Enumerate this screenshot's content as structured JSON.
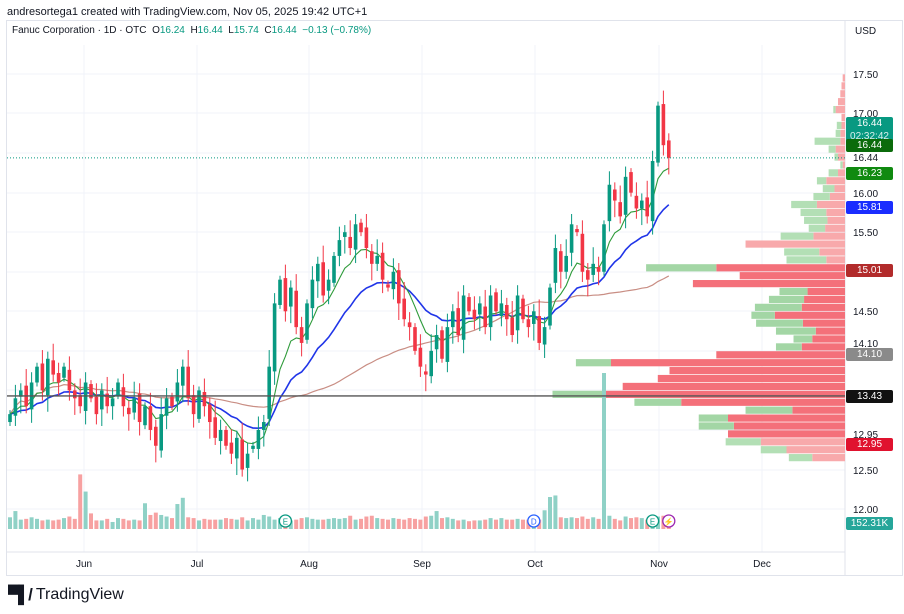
{
  "credit": "andresortega1 created with TradingView.com, Nov 05, 2025 19:42 UTC+1",
  "legend": {
    "symbol": "Fanuc Corporation · 1D · OTC",
    "o_label": "O",
    "open": "16.24",
    "h_label": "H",
    "high": "16.44",
    "l_label": "L",
    "low": "15.74",
    "c_label": "C",
    "close": "16.44",
    "change": "−0.13 (−0.78%)"
  },
  "currency": "USD",
  "brand": "TradingView",
  "colors": {
    "up": "#089981",
    "down": "#f23645",
    "vol_up": "#8fd1c6",
    "vol_down": "#f7a1a1",
    "ma_fast": "#2e9b3a",
    "ma_mid": "#2035e8",
    "ma_slow": "#c98e84"
  },
  "chart_data": {
    "type": "candlestick",
    "title": "Fanuc Corporation · 1D · OTC",
    "y_ticks": [
      "17.50",
      "17.00",
      "16.44",
      "16.00",
      "15.50",
      "14.50",
      "14.10",
      "12.95",
      "12.50",
      "12.00"
    ],
    "x_ticks": [
      "Jun",
      "Jul",
      "Aug",
      "Sep",
      "Oct",
      "Nov",
      "Dec"
    ],
    "ylim": [
      12.0,
      17.5
    ],
    "closes": [
      13.2,
      13.4,
      13.5,
      13.3,
      13.6,
      13.8,
      13.5,
      13.9,
      13.7,
      13.6,
      13.8,
      13.5,
      13.4,
      13.3,
      13.6,
      13.4,
      13.2,
      13.5,
      13.3,
      13.4,
      13.6,
      13.3,
      13.2,
      13.4,
      13.1,
      13.3,
      13.0,
      12.8,
      13.2,
      13.4,
      13.3,
      13.6,
      13.8,
      13.4,
      13.2,
      13.5,
      13.3,
      13.1,
      12.9,
      13.0,
      12.8,
      12.7,
      12.9,
      12.5,
      12.7,
      12.8,
      13.0,
      13.1,
      13.8,
      14.6,
      14.9,
      14.5,
      14.8,
      14.3,
      14.1,
      14.6,
      14.9,
      15.1,
      14.7,
      14.9,
      15.2,
      15.4,
      15.5,
      15.3,
      15.6,
      15.5,
      15.3,
      15.1,
      15.2,
      14.9,
      14.8,
      15.0,
      14.6,
      14.4,
      14.3,
      14.0,
      13.8,
      13.7,
      14.0,
      14.2,
      13.9,
      14.3,
      14.5,
      14.2,
      14.7,
      14.5,
      14.4,
      14.6,
      14.3,
      14.7,
      14.5,
      14.6,
      14.4,
      14.2,
      14.7,
      14.4,
      14.3,
      14.5,
      14.1,
      14.3,
      14.8,
      15.3,
      15.0,
      15.2,
      15.6,
      15.5,
      15.0,
      14.9,
      15.1,
      15.0,
      15.6,
      16.1,
      15.9,
      15.7,
      16.2,
      16.0,
      15.8,
      15.9,
      15.7,
      16.4,
      17.1,
      16.6,
      16.44
    ],
    "volumes_k": [
      150,
      230,
      120,
      130,
      150,
      130,
      110,
      120,
      110,
      120,
      140,
      160,
      130,
      700,
      480,
      200,
      110,
      110,
      130,
      90,
      140,
      130,
      110,
      120,
      110,
      330,
      180,
      210,
      180,
      160,
      140,
      320,
      400,
      150,
      140,
      110,
      130,
      120,
      120,
      120,
      140,
      130,
      120,
      150,
      110,
      140,
      120,
      180,
      160,
      120,
      140,
      160,
      110,
      120,
      140,
      150,
      130,
      120,
      120,
      130,
      140,
      130,
      140,
      170,
      120,
      130,
      160,
      170,
      140,
      130,
      120,
      140,
      130,
      120,
      140,
      130,
      120,
      160,
      170,
      230,
      140,
      150,
      130,
      110,
      120,
      100,
      110,
      110,
      120,
      140,
      120,
      140,
      120,
      120,
      130,
      120,
      120,
      140,
      120,
      240,
      410,
      430,
      150,
      140,
      150,
      140,
      160,
      130,
      150,
      130,
      2000,
      170,
      130,
      110,
      160,
      140,
      150,
      140,
      120,
      150,
      160,
      170,
      150
    ],
    "volume_profile_rows": [
      [
        17.45,
        0,
        2
      ],
      [
        17.35,
        0,
        3
      ],
      [
        17.25,
        0,
        4
      ],
      [
        17.15,
        0,
        6
      ],
      [
        17.05,
        2,
        8
      ],
      [
        16.95,
        0,
        3
      ],
      [
        16.85,
        4,
        3
      ],
      [
        16.75,
        4,
        4
      ],
      [
        16.65,
        22,
        4
      ],
      [
        16.55,
        6,
        8
      ],
      [
        16.45,
        3,
        6
      ],
      [
        16.35,
        2,
        2
      ],
      [
        16.25,
        8,
        6
      ],
      [
        16.15,
        8,
        16
      ],
      [
        16.05,
        10,
        9
      ],
      [
        15.95,
        14,
        13
      ],
      [
        15.85,
        22,
        24
      ],
      [
        15.75,
        22,
        16
      ],
      [
        15.65,
        20,
        15
      ],
      [
        15.55,
        14,
        17
      ],
      [
        15.45,
        28,
        27
      ],
      [
        15.35,
        0,
        85
      ],
      [
        15.25,
        30,
        22
      ],
      [
        15.15,
        34,
        16
      ],
      [
        15.05,
        60,
        110
      ],
      [
        14.95,
        0,
        90
      ],
      [
        14.85,
        0,
        130
      ],
      [
        14.75,
        24,
        32
      ],
      [
        14.65,
        30,
        35
      ],
      [
        14.55,
        40,
        37
      ],
      [
        14.45,
        20,
        60
      ],
      [
        14.35,
        40,
        36
      ],
      [
        14.25,
        34,
        25
      ],
      [
        14.15,
        16,
        28
      ],
      [
        14.05,
        22,
        37
      ],
      [
        13.95,
        0,
        110
      ],
      [
        13.85,
        30,
        200
      ],
      [
        13.75,
        0,
        150
      ],
      [
        13.65,
        0,
        160
      ],
      [
        13.55,
        0,
        190
      ],
      [
        13.45,
        45,
        205
      ],
      [
        13.35,
        40,
        140
      ],
      [
        13.25,
        40,
        45
      ],
      [
        13.15,
        25,
        100
      ],
      [
        13.05,
        30,
        95
      ],
      [
        12.95,
        0,
        100
      ],
      [
        12.85,
        30,
        72
      ],
      [
        12.75,
        22,
        50
      ],
      [
        12.65,
        20,
        28
      ]
    ],
    "poc_price": 13.43,
    "current_price": 16.44,
    "price_labels": [
      {
        "text": "16.44",
        "sub": "02:32:42",
        "color": "#089981"
      },
      {
        "text": "16.44",
        "color": "#0b6b0b"
      },
      {
        "text": "16.23",
        "color": "#108a10"
      },
      {
        "text": "15.81",
        "color": "#1a2dff"
      },
      {
        "text": "15.01",
        "color": "#b22b2b"
      },
      {
        "text": "14.10",
        "color": "#8a8a8a"
      },
      {
        "text": "13.43",
        "color": "#111111"
      },
      {
        "text": "12.95",
        "color": "#e0122e"
      },
      {
        "text": "152.31K",
        "color": "#26a69a"
      }
    ],
    "events": [
      {
        "type": "E",
        "bar": 51
      },
      {
        "type": "D",
        "bar": 97
      },
      {
        "type": "E",
        "bar": 119
      },
      {
        "type": "⚡",
        "bar": 122
      }
    ]
  }
}
